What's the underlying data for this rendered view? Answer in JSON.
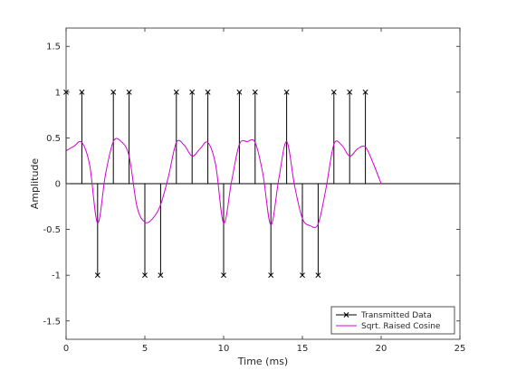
{
  "chart_data": {
    "type": "line",
    "title": "",
    "xlabel": "Time (ms)",
    "ylabel": "Amplitude",
    "xlim": [
      0,
      25
    ],
    "ylim": [
      -1.7,
      1.7
    ],
    "x_ticks": [
      0,
      5,
      10,
      15,
      20,
      25
    ],
    "y_ticks": [
      -1.5,
      -1,
      -0.5,
      0,
      0.5,
      1,
      1.5
    ],
    "x_tick_labels": [
      "0",
      "5",
      "10",
      "15",
      "20",
      "25"
    ],
    "y_tick_labels": [
      "-1.5",
      "-1",
      "-0.5",
      "0",
      "0.5",
      "1",
      "1.5"
    ],
    "grid": false,
    "legend_position": "bottom-right",
    "series": [
      {
        "name": "Transmitted Data",
        "kind": "stem",
        "marker": "x",
        "color": "#000000",
        "x": [
          0,
          1,
          2,
          3,
          4,
          5,
          6,
          7,
          8,
          9,
          10,
          11,
          12,
          13,
          14,
          15,
          16,
          17,
          18,
          19
        ],
        "y": [
          1,
          1,
          -1,
          1,
          1,
          -1,
          -1,
          1,
          1,
          1,
          -1,
          1,
          1,
          -1,
          1,
          -1,
          -1,
          1,
          1,
          1
        ]
      },
      {
        "name": "Sqrt. Raised Cosine",
        "kind": "line",
        "color": "#d400d4",
        "x": [
          0,
          0.5,
          1,
          1.5,
          2,
          2.5,
          3,
          3.5,
          4,
          4.5,
          5,
          5.5,
          6,
          6.5,
          7,
          7.5,
          8,
          8.5,
          9,
          9.5,
          10,
          10.5,
          11,
          11.5,
          12,
          12.5,
          13,
          13.5,
          14,
          14.5,
          15,
          15.5,
          16,
          16.5,
          17,
          17.5,
          18,
          18.5,
          19,
          19.5,
          20
        ],
        "y": [
          0.36,
          0.41,
          0.45,
          0.2,
          -0.43,
          0.1,
          0.46,
          0.46,
          0.3,
          -0.25,
          -0.42,
          -0.38,
          -0.23,
          0.08,
          0.45,
          0.42,
          0.3,
          0.38,
          0.45,
          0.2,
          -0.43,
          0.02,
          0.43,
          0.46,
          0.45,
          0.1,
          -0.45,
          0.05,
          0.46,
          -0.02,
          -0.38,
          -0.46,
          -0.44,
          -0.05,
          0.43,
          0.42,
          0.3,
          0.38,
          0.4,
          0.22,
          0.0
        ]
      }
    ]
  }
}
